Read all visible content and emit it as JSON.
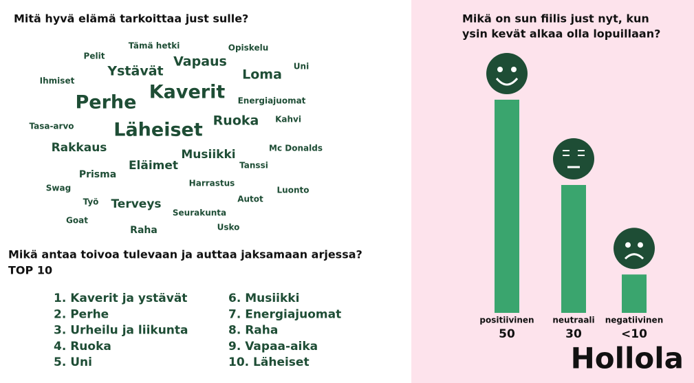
{
  "wordcloud": {
    "title": "Mitä hyvä elämä tarkoittaa just sulle?",
    "words": [
      "Tämä hetki",
      "Opiskelu",
      "Pelit",
      "Ystävät",
      "Vapaus",
      "Loma",
      "Uni",
      "Ihmiset",
      "Kaverit",
      "Perhe",
      "Energiajuomat",
      "Ruoka",
      "Kahvi",
      "Tasa-arvo",
      "Läheiset",
      "Rakkaus",
      "Musiikki",
      "Mc Donalds",
      "Eläimet",
      "Tanssi",
      "Prisma",
      "Harrastus",
      "Luonto",
      "Swag",
      "Autot",
      "Työ",
      "Terveys",
      "Seurakunta",
      "Goat",
      "Usko",
      "Raha"
    ]
  },
  "top10": {
    "title": "Mikä antaa toivoa tulevaan ja auttaa jaksamaan arjessa?",
    "subtitle": "TOP 10",
    "items": [
      "1. Kaverit ja ystävät",
      "2. Perhe",
      "3. Urheilu ja liikunta",
      "4. Ruoka",
      "5. Uni",
      "6. Musiikki",
      "7. Energiajuomat",
      "8. Raha",
      "9. Vapaa-aika",
      "10. Läheiset"
    ]
  },
  "chart_data": {
    "type": "bar",
    "title": [
      "Mikä on sun fiilis just nyt, kun",
      "ysin kevät alkaa olla lopuillaan?"
    ],
    "categories": [
      "positiivinen",
      "neutraali",
      "negatiivinen"
    ],
    "values": [
      50,
      30,
      9
    ],
    "value_labels": [
      "50",
      "30",
      "<10"
    ],
    "color": "#3aa56e"
  },
  "brand": "Hollola"
}
